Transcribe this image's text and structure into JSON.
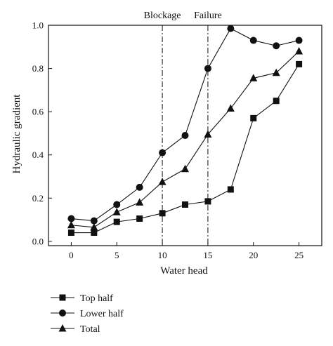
{
  "chart_data": {
    "type": "line",
    "xlabel": "Water head",
    "ylabel": "Hydraulic gradient",
    "xlim": [
      -2.5,
      27.5
    ],
    "ylim": [
      -0.02,
      1.0
    ],
    "xticks": [
      0,
      5,
      10,
      15,
      20,
      25
    ],
    "xtick_labels": [
      "0",
      "5",
      "10",
      "15",
      "20",
      "25"
    ],
    "yticks": [
      0.0,
      0.2,
      0.4,
      0.6,
      0.8,
      1.0
    ],
    "ytick_labels": [
      "0.0",
      "0.2",
      "0.4",
      "0.6",
      "0.8",
      "1.0"
    ],
    "grid": false,
    "legend_position": "below plot, left",
    "x": [
      0,
      2.5,
      5,
      7.5,
      10,
      12.5,
      15,
      17.5,
      20,
      22.5,
      25
    ],
    "series": [
      {
        "name": "Top half",
        "marker": "square",
        "values": [
          0.04,
          0.04,
          0.09,
          0.105,
          0.13,
          0.17,
          0.185,
          0.24,
          0.57,
          0.65,
          0.82
        ]
      },
      {
        "name": "Lower half",
        "marker": "circle",
        "values": [
          0.105,
          0.095,
          0.17,
          0.25,
          0.41,
          0.49,
          0.8,
          0.985,
          0.93,
          0.905,
          0.93
        ]
      },
      {
        "name": "Total",
        "marker": "triangle",
        "values": [
          0.075,
          0.065,
          0.135,
          0.18,
          0.275,
          0.335,
          0.495,
          0.615,
          0.755,
          0.78,
          0.88
        ]
      }
    ],
    "annotations": [
      {
        "x": 10,
        "label": "Blockage",
        "style": "dash-dot vertical line"
      },
      {
        "x": 15,
        "label": "Failure",
        "style": "dash-dot vertical line"
      }
    ],
    "colors": {
      "line": "#111111",
      "marker": "#111111"
    }
  }
}
